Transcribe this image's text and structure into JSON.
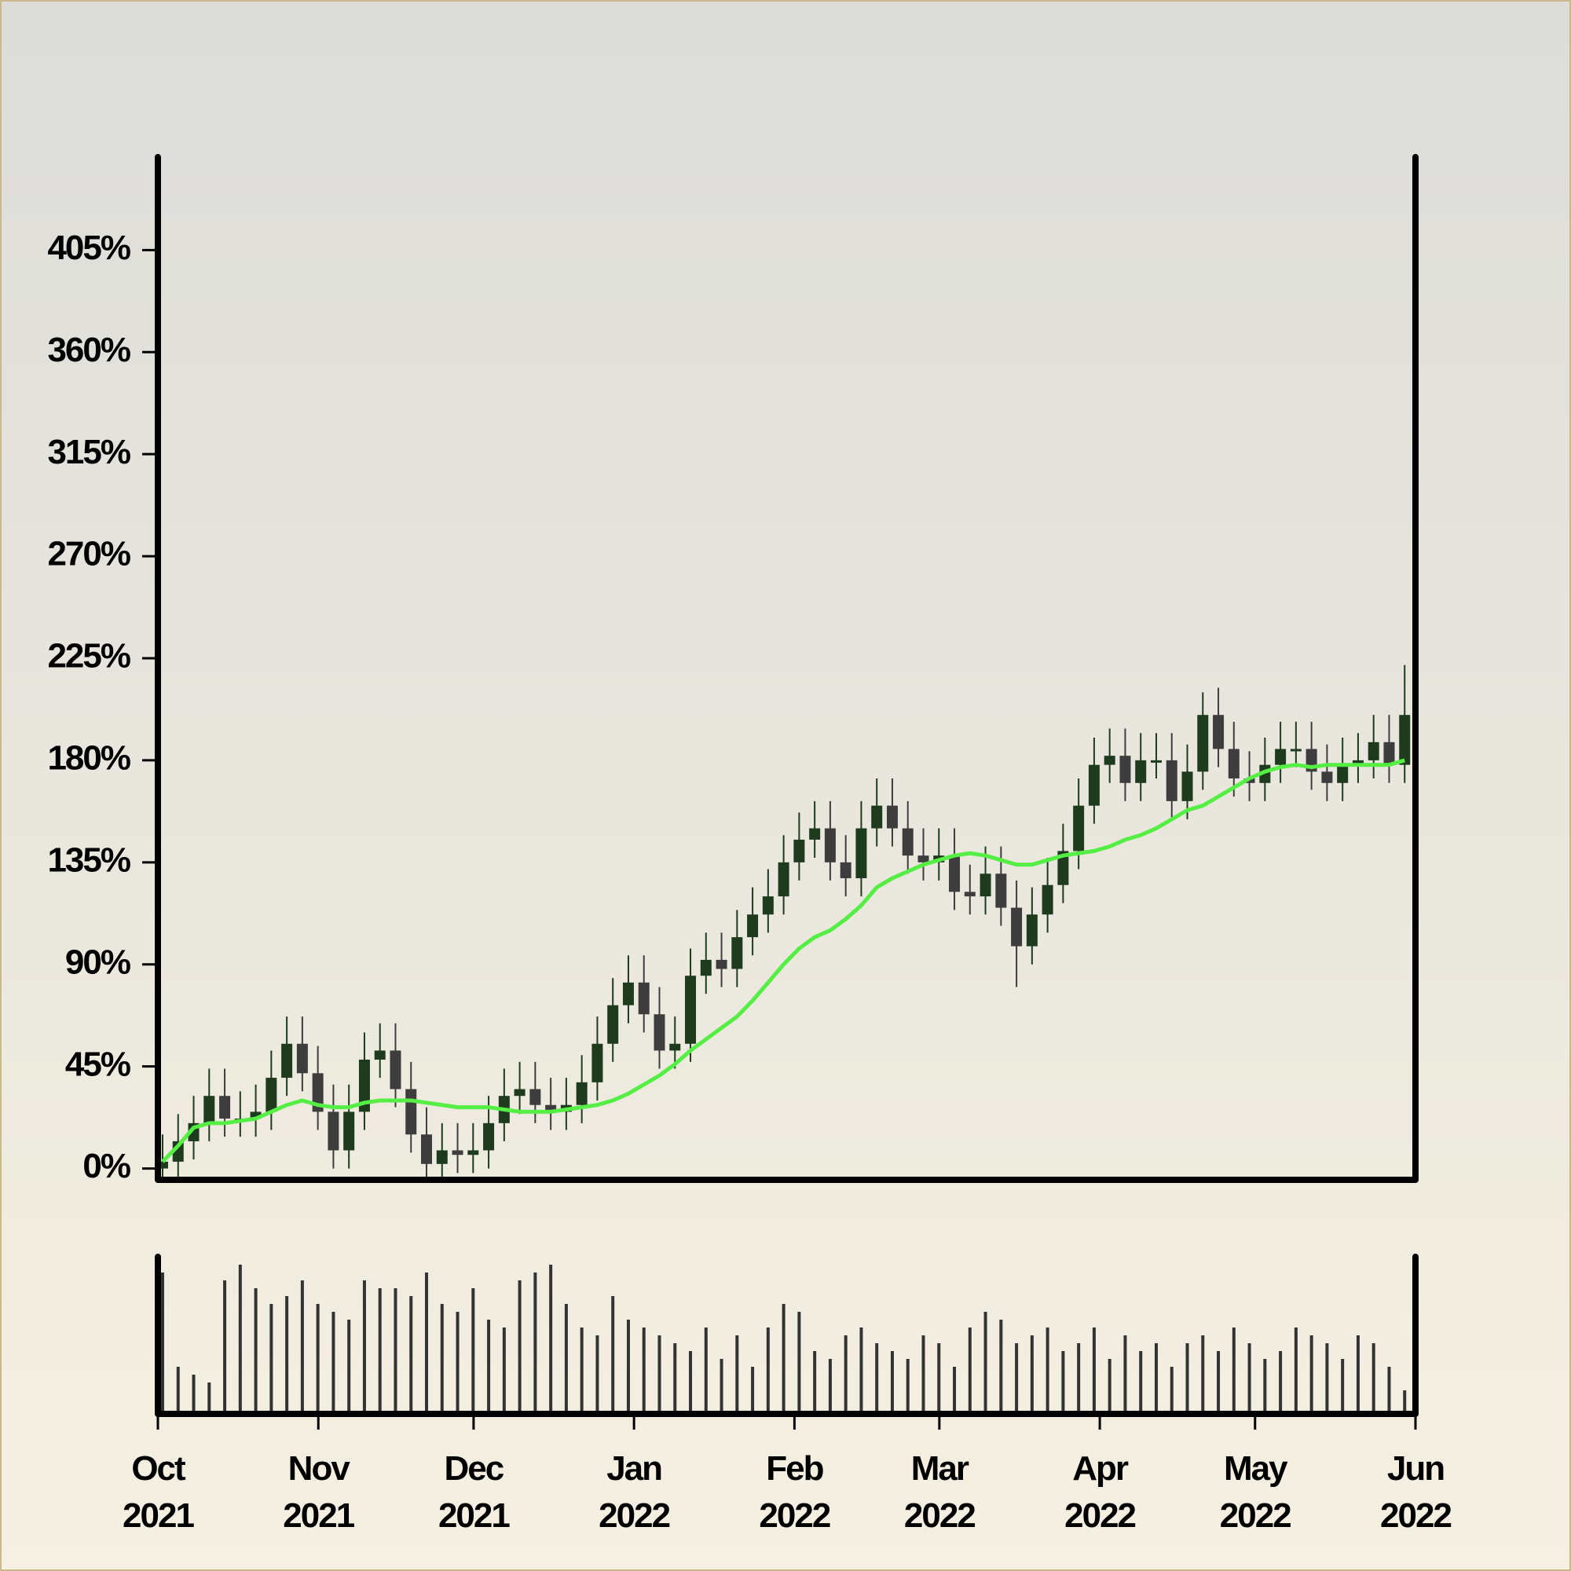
{
  "chart_data": {
    "type": "candlestick",
    "x": [
      0,
      3,
      6,
      9,
      12,
      15,
      18,
      21,
      24,
      27,
      30,
      33,
      36,
      39,
      42,
      45,
      48,
      51,
      54,
      57,
      60,
      63,
      66,
      69,
      72,
      75,
      78,
      81,
      84,
      87,
      90,
      93,
      96,
      99,
      102,
      105,
      108,
      111,
      114,
      117,
      120,
      123,
      126,
      129,
      132,
      135,
      138,
      141,
      144,
      147,
      150,
      153,
      156,
      159,
      162,
      165,
      168,
      171,
      174,
      177,
      180,
      183,
      186,
      189,
      192,
      195,
      198,
      201,
      204,
      207,
      210,
      213,
      216,
      219,
      222,
      225,
      228,
      231,
      234,
      237,
      240
    ],
    "open": [
      0,
      3,
      12,
      20,
      32,
      22,
      22,
      25,
      40,
      55,
      42,
      25,
      8,
      25,
      48,
      52,
      35,
      15,
      2,
      8,
      6,
      8,
      20,
      32,
      35,
      28,
      25,
      28,
      38,
      55,
      72,
      82,
      68,
      52,
      55,
      85,
      92,
      88,
      102,
      112,
      120,
      135,
      145,
      150,
      135,
      128,
      150,
      160,
      150,
      138,
      135,
      138,
      122,
      120,
      130,
      115,
      98,
      112,
      125,
      140,
      160,
      178,
      182,
      170,
      180,
      180,
      162,
      175,
      200,
      185,
      172,
      170,
      178,
      185,
      185,
      175,
      170,
      178,
      180,
      188,
      178
    ],
    "high": [
      15,
      24,
      32,
      44,
      44,
      34,
      37,
      52,
      67,
      67,
      54,
      37,
      37,
      60,
      64,
      64,
      47,
      27,
      20,
      20,
      20,
      32,
      44,
      47,
      47,
      40,
      40,
      50,
      67,
      84,
      94,
      94,
      80,
      67,
      97,
      104,
      104,
      114,
      124,
      132,
      147,
      157,
      162,
      162,
      147,
      162,
      172,
      172,
      162,
      150,
      150,
      150,
      134,
      142,
      142,
      127,
      124,
      137,
      152,
      172,
      190,
      194,
      194,
      192,
      192,
      192,
      187,
      210,
      212,
      197,
      184,
      190,
      197,
      197,
      197,
      187,
      190,
      192,
      200,
      200,
      222
    ],
    "low": [
      -4,
      -4,
      4,
      12,
      14,
      14,
      14,
      17,
      32,
      34,
      17,
      0,
      0,
      17,
      40,
      27,
      7,
      -4,
      -4,
      -2,
      -2,
      0,
      12,
      24,
      20,
      17,
      17,
      20,
      30,
      47,
      64,
      60,
      44,
      44,
      47,
      77,
      80,
      80,
      94,
      104,
      112,
      127,
      137,
      127,
      120,
      120,
      142,
      142,
      130,
      127,
      127,
      114,
      112,
      112,
      107,
      80,
      90,
      104,
      117,
      132,
      152,
      170,
      162,
      162,
      172,
      154,
      154,
      167,
      177,
      164,
      162,
      162,
      170,
      177,
      167,
      162,
      162,
      170,
      172,
      170,
      170
    ],
    "close": [
      3,
      12,
      20,
      32,
      22,
      22,
      25,
      40,
      55,
      42,
      25,
      8,
      25,
      48,
      52,
      35,
      15,
      2,
      8,
      6,
      8,
      20,
      32,
      35,
      28,
      25,
      28,
      38,
      55,
      72,
      82,
      68,
      52,
      55,
      85,
      92,
      88,
      102,
      112,
      120,
      135,
      145,
      150,
      135,
      128,
      150,
      160,
      150,
      138,
      135,
      138,
      122,
      120,
      130,
      115,
      98,
      112,
      125,
      140,
      160,
      178,
      182,
      170,
      180,
      180,
      162,
      175,
      200,
      185,
      172,
      170,
      178,
      185,
      185,
      175,
      170,
      178,
      180,
      188,
      178,
      200
    ],
    "up_color": "#1e3b1e",
    "down_color": "#3d3d3d",
    "moving_average": {
      "color": "#55ee44",
      "values": [
        3,
        10,
        18,
        20,
        20,
        21,
        22,
        25,
        28,
        30,
        28,
        27,
        27,
        29,
        30,
        30,
        30,
        29,
        28,
        27,
        27,
        27,
        26,
        25,
        25,
        25,
        26,
        27,
        28,
        30,
        33,
        37,
        41,
        46,
        52,
        57,
        62,
        67,
        74,
        82,
        90,
        97,
        102,
        105,
        110,
        116,
        124,
        128,
        131,
        134,
        136,
        138,
        139,
        138,
        136,
        134,
        134,
        136,
        138,
        139,
        140,
        142,
        145,
        147,
        150,
        154,
        158,
        160,
        164,
        168,
        172,
        175,
        177,
        178,
        177,
        178,
        178,
        178,
        178,
        178,
        180
      ]
    },
    "volume": {
      "color": "#333333",
      "ylim": [
        0,
        100
      ],
      "values": [
        90,
        30,
        25,
        20,
        85,
        95,
        80,
        70,
        75,
        85,
        70,
        65,
        60,
        85,
        80,
        80,
        75,
        90,
        70,
        65,
        80,
        60,
        55,
        85,
        90,
        95,
        70,
        55,
        50,
        75,
        60,
        55,
        50,
        45,
        40,
        55,
        35,
        50,
        30,
        55,
        70,
        65,
        40,
        35,
        50,
        55,
        45,
        40,
        35,
        50,
        45,
        30,
        55,
        65,
        60,
        45,
        50,
        55,
        40,
        45,
        55,
        35,
        50,
        40,
        45,
        30,
        45,
        50,
        40,
        55,
        45,
        35,
        40,
        55,
        50,
        45,
        35,
        50,
        45,
        30,
        15
      ]
    },
    "xlim": [
      0,
      243
    ],
    "xticks": [
      {
        "value": 0,
        "label": "Oct 2021"
      },
      {
        "value": 31,
        "label": "Nov 2021"
      },
      {
        "value": 61,
        "label": "Dec 2021"
      },
      {
        "value": 92,
        "label": "Jan 2022"
      },
      {
        "value": 123,
        "label": "Feb 2022"
      },
      {
        "value": 151,
        "label": "Mar 2022"
      },
      {
        "value": 182,
        "label": "Apr 2022"
      },
      {
        "value": 212,
        "label": "May 2022"
      },
      {
        "value": 243,
        "label": "Jun 2022"
      }
    ],
    "ylim": [
      -5,
      446
    ],
    "yticks": [
      {
        "value": 0,
        "label": "0%"
      },
      {
        "value": 45,
        "label": "45%"
      },
      {
        "value": 90,
        "label": "90%"
      },
      {
        "value": 135,
        "label": "135%"
      },
      {
        "value": 180,
        "label": "180%"
      },
      {
        "value": 225,
        "label": "225%"
      },
      {
        "value": 270,
        "label": "270%"
      },
      {
        "value": 315,
        "label": "315%"
      },
      {
        "value": 360,
        "label": "360%"
      },
      {
        "value": 405,
        "label": "405%"
      }
    ]
  }
}
